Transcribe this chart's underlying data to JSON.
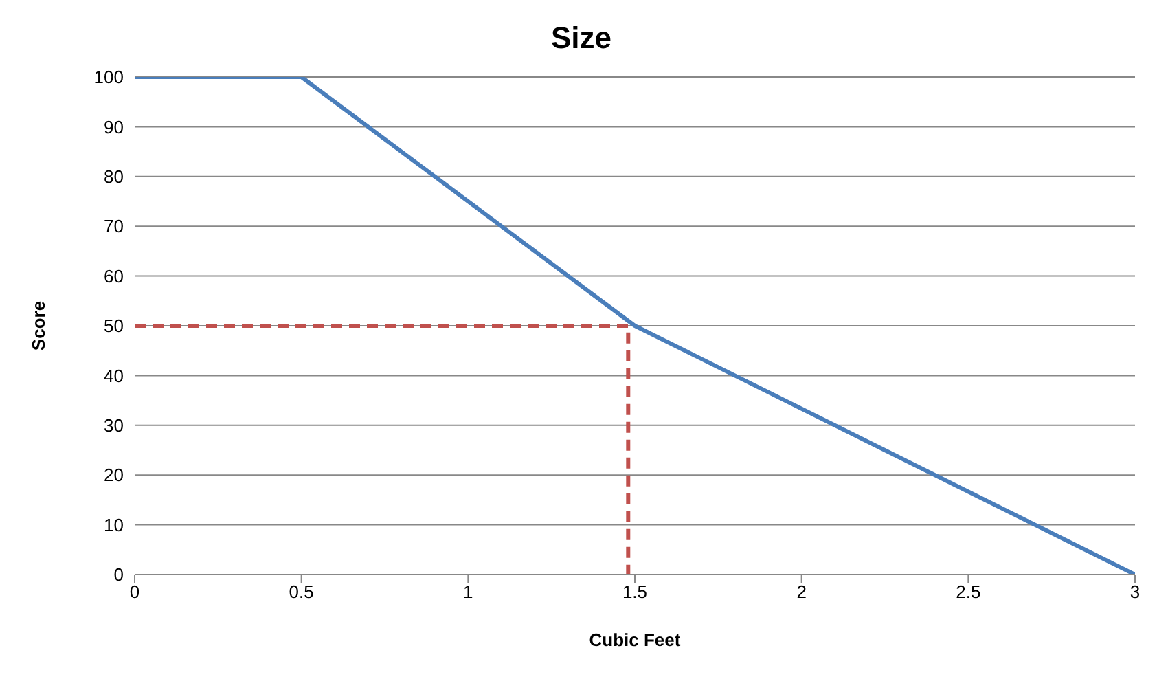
{
  "chart_data": {
    "type": "line",
    "title": "Size",
    "xlabel": "Cubic Feet",
    "ylabel": "Score",
    "xlim": [
      0,
      3
    ],
    "xticks": [
      0,
      0.5,
      1,
      1.5,
      2,
      2.5,
      3
    ],
    "ylim": [
      0,
      100
    ],
    "yticks": [
      0,
      10,
      20,
      30,
      40,
      50,
      60,
      70,
      80,
      90,
      100
    ],
    "grid": "y",
    "marker": "none",
    "series": [
      {
        "color": "#4a7ebb",
        "x": [
          0,
          0.5,
          1.5,
          3
        ],
        "values": [
          100,
          100,
          50,
          0
        ],
        "line_style": "solid"
      },
      {
        "color": "#c0504d",
        "x": [
          0,
          1.48,
          1.48
        ],
        "values": [
          50,
          50,
          0
        ],
        "line_style": "dashed"
      }
    ]
  }
}
